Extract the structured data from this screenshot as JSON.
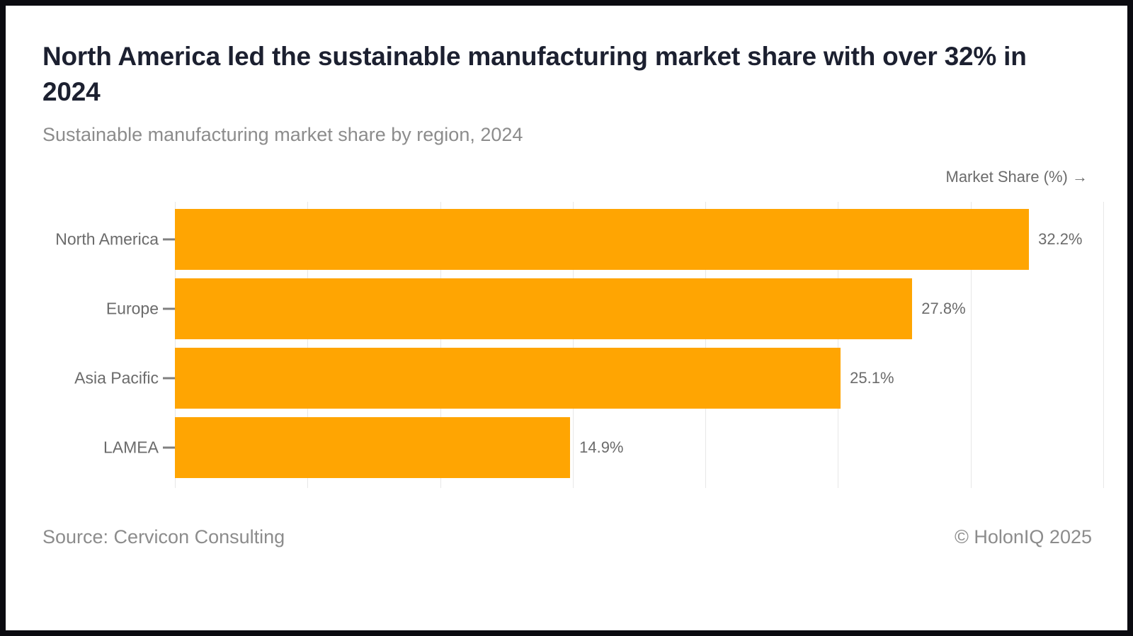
{
  "header": {
    "title": "North America led the sustainable manufacturing market share with over 32% in 2024",
    "subtitle": "Sustainable manufacturing market share by region, 2024"
  },
  "chart_data": {
    "type": "bar",
    "orientation": "horizontal",
    "title": "North America led the sustainable manufacturing market share with over 32% in 2024",
    "subtitle": "Sustainable manufacturing market share by region, 2024",
    "xlabel": "Market Share (%)",
    "xlabel_display": "Market Share (%) →",
    "ylabel": "",
    "categories": [
      "North America",
      "Europe",
      "Asia Pacific",
      "LAMEA"
    ],
    "values": [
      32.2,
      27.8,
      25.1,
      14.9
    ],
    "value_labels": [
      "32.2%",
      "27.8%",
      "25.1%",
      "14.9%"
    ],
    "xlim": [
      0,
      35
    ],
    "gridline_step": 5,
    "grid": true,
    "legend": false,
    "bar_color": "#ffa502"
  },
  "footer": {
    "source": "Source: Cervicon Consulting",
    "copyright": "© HolonIQ 2025"
  },
  "colors": {
    "title": "#1c2030",
    "subtitle": "#8c8c8c",
    "axis_label": "#6b6b6b",
    "category_label": "#6b6b6b",
    "value_label": "#6b6b6b",
    "gridline": "#e7e7e7",
    "tick": "#808080",
    "bar": "#ffa502",
    "frame": "#0b0b10",
    "background": "#ffffff"
  }
}
